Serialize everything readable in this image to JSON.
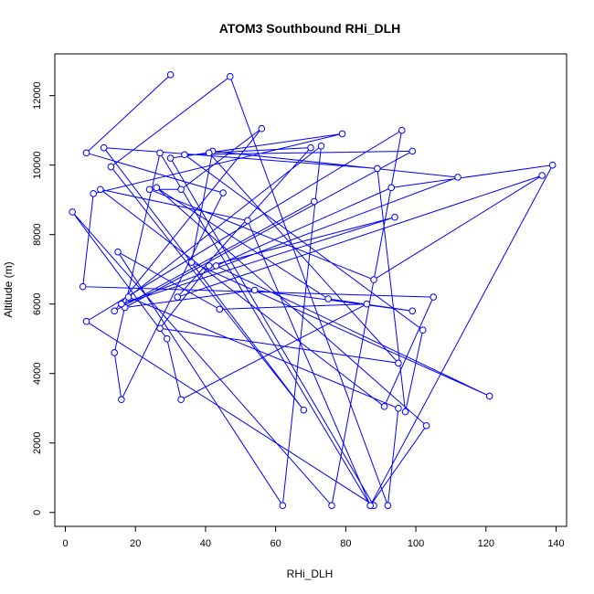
{
  "chart_data": {
    "type": "line",
    "title": "ATOM3 Southbound RHi_DLH",
    "xlabel": "RHi_DLH",
    "ylabel": "Altitude (m)",
    "xlim": [
      -3,
      143
    ],
    "ylim": [
      -400,
      13200
    ],
    "xticks": [
      0,
      20,
      40,
      60,
      80,
      100,
      120,
      140
    ],
    "yticks": [
      0,
      2000,
      4000,
      6000,
      8000,
      10000,
      12000
    ],
    "grid": false,
    "legend": "none",
    "color": "#0000ff",
    "series": [
      {
        "marker": "open-circle",
        "x": [
          30,
          6,
          45,
          16,
          14,
          27,
          87,
          52,
          10,
          91,
          105,
          5,
          8,
          79,
          30,
          88,
          6,
          96,
          76,
          2,
          29,
          33,
          86,
          44,
          15,
          62,
          73,
          18,
          95,
          92,
          47,
          13,
          68,
          11,
          89,
          97,
          102,
          34,
          99,
          17,
          54,
          99,
          75,
          26,
          103,
          87,
          139,
          93,
          43,
          121,
          36,
          42,
          112,
          16,
          94,
          41,
          27,
          95,
          41,
          70,
          32,
          136,
          88,
          24,
          33,
          56,
          14,
          71
        ],
        "y": [
          12600,
          10350,
          9200,
          3250,
          4600,
          10350,
          200,
          8400,
          9300,
          3050,
          6200,
          6500,
          9180,
          10900,
          10200,
          200,
          5500,
          11000,
          200,
          8650,
          5000,
          3250,
          6000,
          5850,
          7500,
          200,
          10550,
          6200,
          3000,
          200,
          12550,
          9950,
          2950,
          10500,
          9900,
          2900,
          5250,
          10300,
          10400,
          5900,
          6400,
          5800,
          6150,
          9350,
          2500,
          200,
          10000,
          9350,
          7100,
          3350,
          7200,
          10400,
          9650,
          6000,
          8500,
          7100,
          5300,
          4300,
          10350,
          10500,
          6200,
          9700,
          6700,
          9300,
          9300,
          11050,
          5800,
          8950
        ]
      }
    ]
  }
}
